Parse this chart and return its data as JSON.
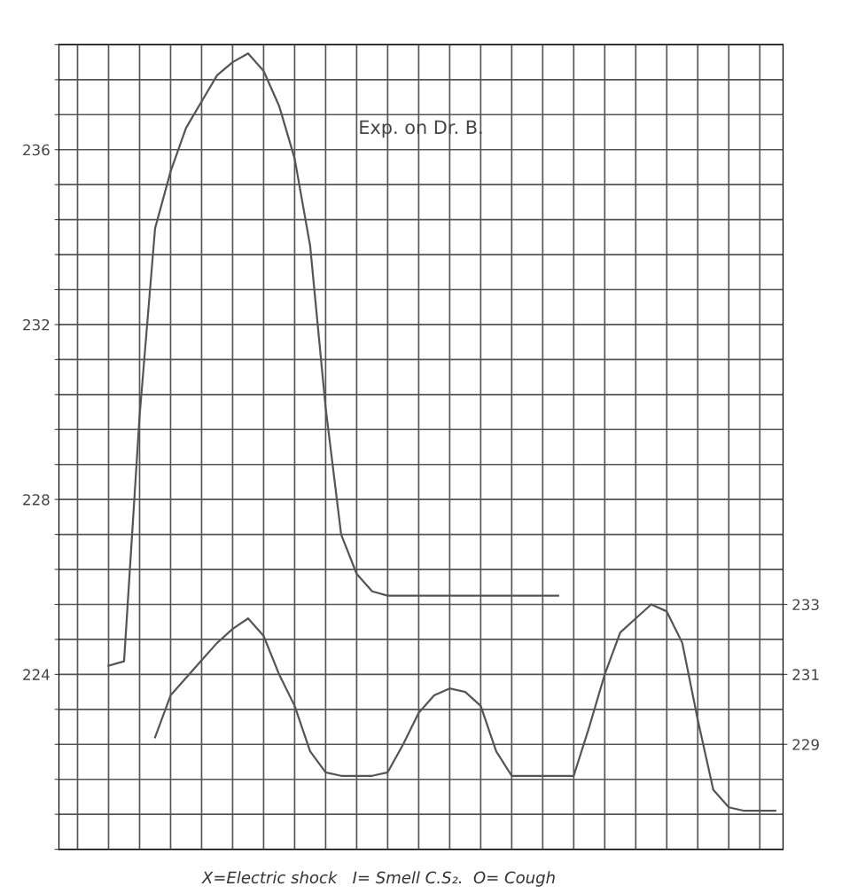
{
  "chart_data": {
    "type": "line",
    "title": "Exp. on Dr. B.",
    "categories": [
      null,
      null,
      null,
      null,
      null,
      null,
      null,
      null,
      null,
      null,
      null,
      null,
      null,
      null,
      null,
      null,
      null,
      null,
      null,
      null,
      null,
      null,
      null,
      null,
      null,
      null,
      null,
      null,
      null,
      null,
      null,
      null,
      null,
      null,
      null,
      null,
      null,
      null,
      null,
      null,
      null,
      null,
      null,
      null,
      null,
      null
    ],
    "series": [
      {
        "color": "#555555",
        "values": [
          null,
          null,
          224.2,
          224.3,
          229.9,
          234.2,
          235.5,
          236.5,
          237.1,
          237.7,
          238.0,
          238.2,
          237.8,
          237.0,
          235.8,
          233.8,
          230.1,
          227.2,
          226.3,
          225.9,
          225.8,
          225.8,
          225.8,
          225.8,
          225.8,
          225.8,
          225.8,
          225.8,
          225.8,
          225.8,
          225.8,
          225.8,
          null,
          null,
          null,
          null,
          null,
          null,
          null,
          null,
          null,
          null,
          null,
          null,
          null,
          null
        ]
      },
      {
        "color": "#555555",
        "axis": "y2",
        "values": [
          null,
          null,
          null,
          null,
          null,
          229.2,
          230.4,
          230.9,
          231.4,
          231.9,
          232.3,
          232.6,
          232.1,
          231.0,
          230.1,
          228.8,
          228.2,
          228.1,
          228.1,
          228.1,
          228.2,
          229.0,
          229.9,
          230.4,
          230.6,
          230.5,
          230.1,
          228.8,
          228.1,
          228.1,
          228.1,
          228.1,
          228.1,
          229.5,
          231.0,
          232.2,
          232.6,
          233.0,
          232.8,
          231.9,
          229.7,
          227.7,
          227.2,
          227.1,
          227.1,
          227.1
        ]
      }
    ],
    "ylim": [
      220,
      238.4
    ],
    "yticks": [
      {
        "value": 220,
        "label": null
      },
      {
        "value": 220.8,
        "label": null
      },
      {
        "value": 221.6,
        "label": null
      },
      {
        "value": 222.4,
        "label": null
      },
      {
        "value": 223.2,
        "label": null
      },
      224,
      {
        "value": 224.8,
        "label": null
      },
      {
        "value": 225.6,
        "label": null
      },
      {
        "value": 226.4,
        "label": null
      },
      {
        "value": 227.2,
        "label": null
      },
      228,
      {
        "value": 228.8,
        "label": null
      },
      {
        "value": 229.6,
        "label": null
      },
      {
        "value": 230.4,
        "label": null
      },
      {
        "value": 231.2,
        "label": null
      },
      232,
      {
        "value": 232.8,
        "label": null
      },
      {
        "value": 233.6,
        "label": null
      },
      {
        "value": 234.4,
        "label": null
      },
      {
        "value": 235.2,
        "label": null
      },
      236,
      {
        "value": 236.8,
        "label": null
      },
      {
        "value": 237.6,
        "label": null
      },
      {
        "value": 238.4,
        "label": null
      }
    ],
    "y2lim": [
      226,
      249
    ],
    "y2ticks": [
      229,
      231,
      233
    ],
    "grid": true,
    "annotations": [
      "X=Electric shock   I= Smell C.S₂.  O= Cough"
    ]
  }
}
